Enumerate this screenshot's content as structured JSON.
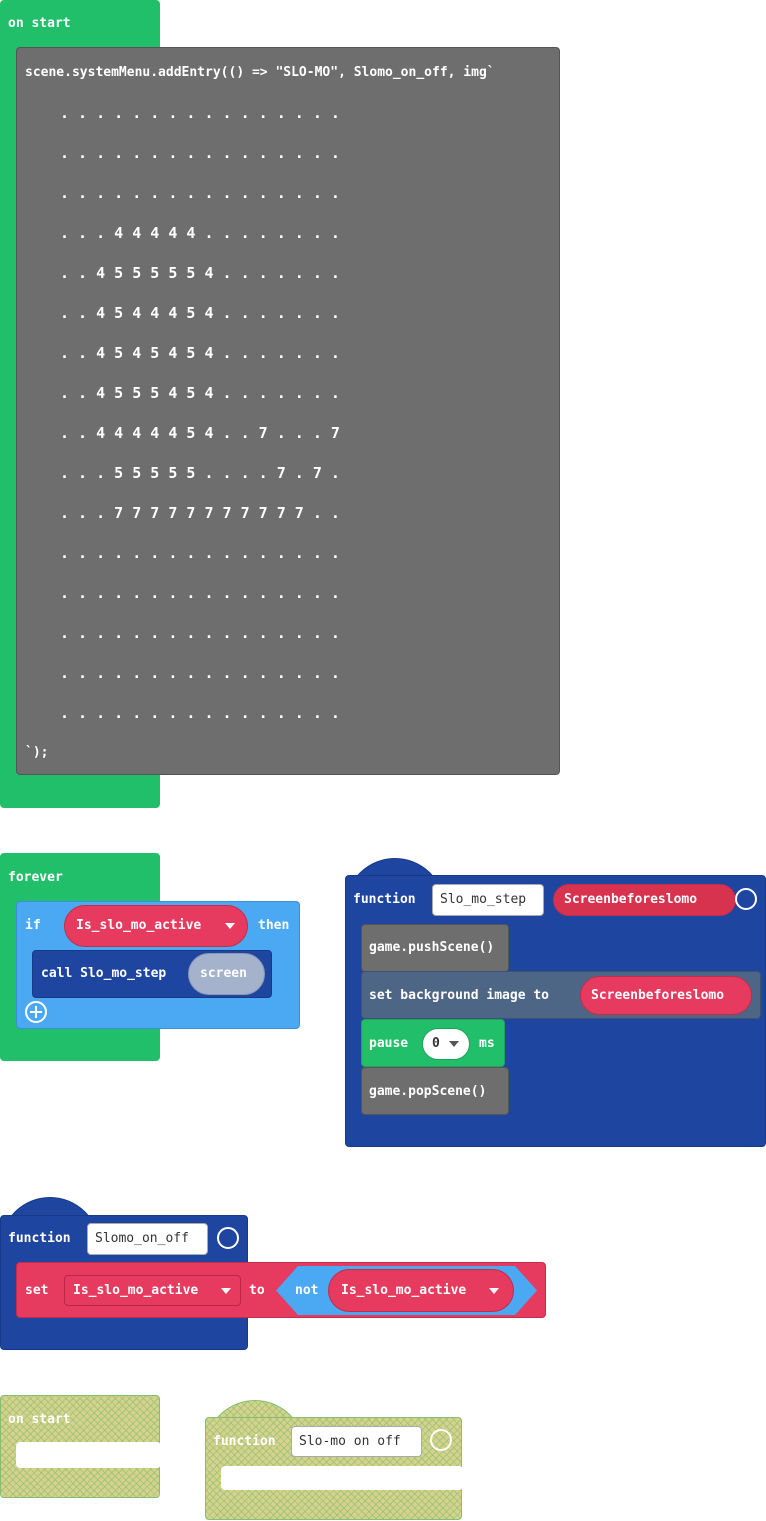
{
  "on_start": {
    "label": "on start",
    "code_open": "scene.systemMenu.addEntry(() => \"SLO-MO\", Slomo_on_off, img`",
    "image_rows": [
      ". . . . . . . . . . . . . . . .",
      ". . . . . . . . . . . . . . . .",
      ". . . . . . . . . . . . . . . .",
      ". . . 4 4 4 4 4 . . . . . . . .",
      ". . 4 5 5 5 5 5 4 . . . . . . .",
      ". . 4 5 4 4 4 5 4 . . . . . . .",
      ". . 4 5 4 5 4 5 4 . . . . . . .",
      ". . 4 5 5 5 4 5 4 . . . . . . .",
      ". . 4 4 4 4 4 5 4 . . 7 . . . 7",
      ". . . 5 5 5 5 5 . . . . 7 . 7 .",
      ". . . 7 7 7 7 7 7 7 7 7 7 7 . .",
      ". . . . . . . . . . . . . . . .",
      ". . . . . . . . . . . . . . . .",
      ". . . . . . . . . . . . . . . .",
      ". . . . . . . . . . . . . . . .",
      ". . . . . . . . . . . . . . . ."
    ],
    "code_close": "`);"
  },
  "forever": {
    "label": "forever",
    "if_label": "if",
    "condition": "Is_slo_mo_active",
    "then_label": "then",
    "call_label": "call Slo_mo_step",
    "call_arg": "screen"
  },
  "function_slo_mo_step": {
    "keyword": "function",
    "name": "Slo_mo_step",
    "param": "Screenbeforeslomo",
    "push": "game.pushScene()",
    "set_background": "set background image to",
    "set_background_arg": "Screenbeforeslomo",
    "pause_label": "pause",
    "pause_value": 0,
    "pause_unit": "ms",
    "pop": "game.popScene()"
  },
  "function_slomo_on_off": {
    "keyword": "function",
    "name": "Slomo_on_off",
    "set_label": "set",
    "variable": "Is_slo_mo_active",
    "to_label": "to",
    "not_label": "not",
    "not_arg": "Is_slo_mo_active"
  },
  "disabled_on_start": {
    "label": "on start"
  },
  "disabled_function": {
    "keyword": "function",
    "name": "Slo-mo on off"
  }
}
